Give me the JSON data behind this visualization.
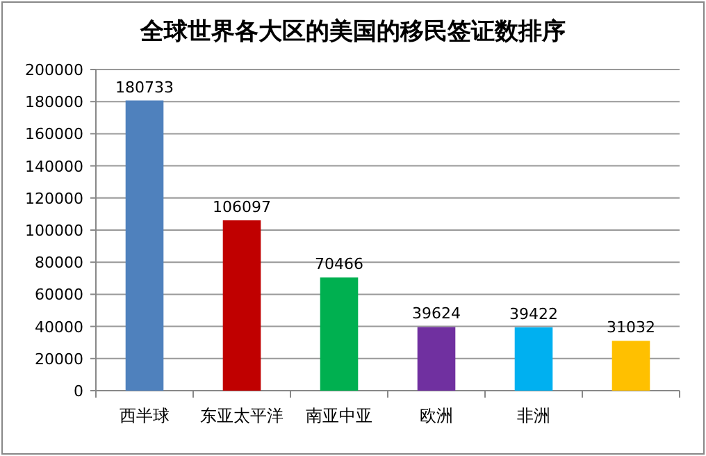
{
  "chart_data": {
    "type": "bar",
    "title": "全球世界各大区的美国的移民签证数排序",
    "categories": [
      "西半球",
      "东亚太平洋",
      "南亚中亚",
      "欧洲",
      "非洲",
      null
    ],
    "values": [
      180733,
      106097,
      70466,
      39624,
      39422,
      31032
    ],
    "colors": [
      "#4f81bd",
      "#c00000",
      "#00b050",
      "#7030a0",
      "#00b0f0",
      "#ffc000"
    ],
    "ylim": [
      0,
      200000
    ],
    "yticks": [
      0,
      20000,
      40000,
      60000,
      80000,
      100000,
      120000,
      140000,
      160000,
      180000,
      200000
    ],
    "grid": "y",
    "data_labels": true
  }
}
